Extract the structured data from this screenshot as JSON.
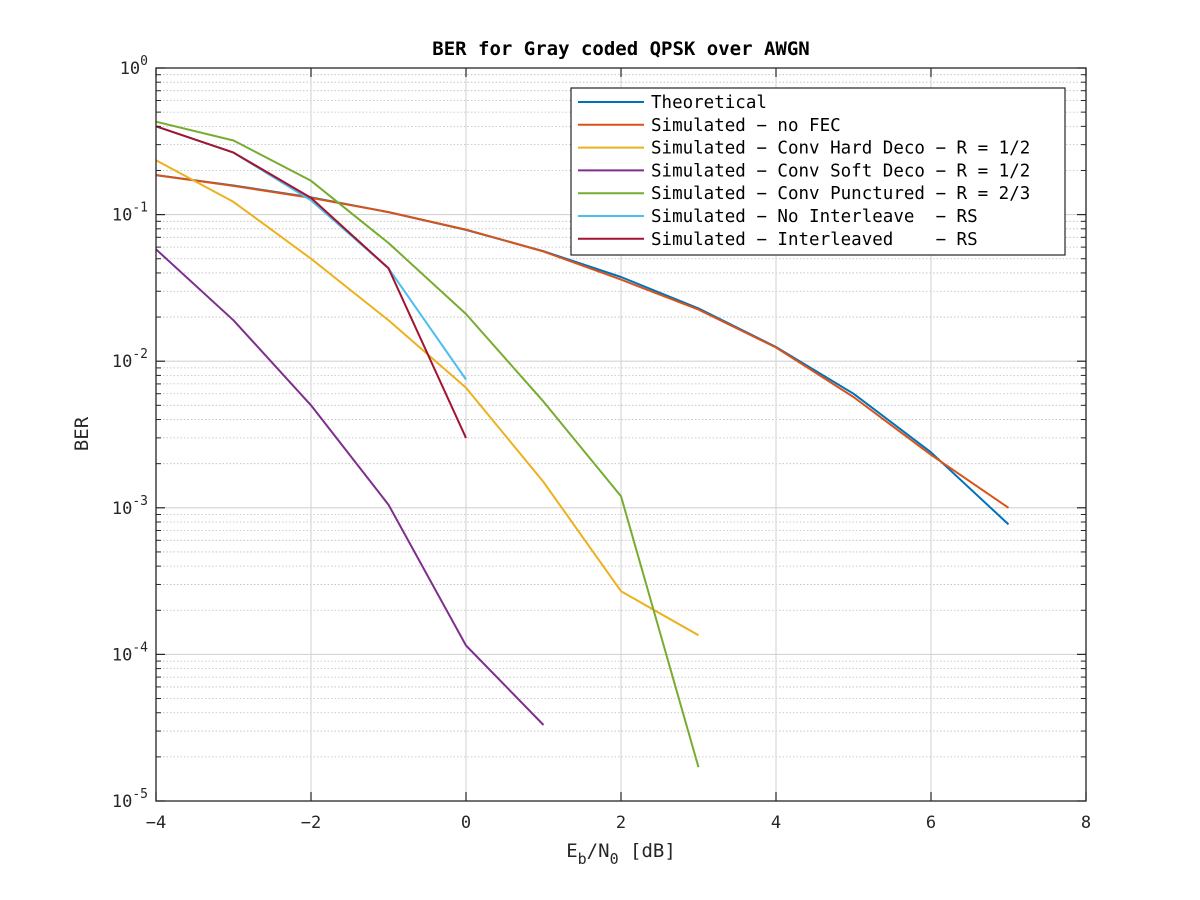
{
  "chart_data": {
    "type": "line",
    "title": "BER for Gray coded QPSK over AWGN",
    "xlabel": {
      "base": "E",
      "sub1": "b",
      "mid": "/N",
      "sub2": "0",
      "tail": " [dB]"
    },
    "ylabel": "BER",
    "xlim": [
      -4,
      8
    ],
    "ylim": [
      1e-05,
      1
    ],
    "yscale": "log",
    "grid": true,
    "minor_grid": true,
    "legend_position": "top-right",
    "x_ticks": [
      "−4",
      "−2",
      "0",
      "2",
      "4",
      "6",
      "8"
    ],
    "y_ticks": [
      {
        "base": "10",
        "exp": "0"
      },
      {
        "base": "10",
        "exp": "-1"
      },
      {
        "base": "10",
        "exp": "-2"
      },
      {
        "base": "10",
        "exp": "-3"
      },
      {
        "base": "10",
        "exp": "-4"
      },
      {
        "base": "10",
        "exp": "-5"
      }
    ],
    "series": [
      {
        "name": "Theoretical",
        "color": "#0072BD",
        "x": [
          -4,
          -3,
          -2,
          -1,
          0,
          1,
          2,
          3,
          4,
          5,
          6,
          7
        ],
        "y": [
          0.186,
          0.158,
          0.131,
          0.104,
          0.0786,
          0.0563,
          0.0375,
          0.0229,
          0.0125,
          0.006,
          0.00239,
          0.00077
        ]
      },
      {
        "name": "Simulated − no FEC",
        "color": "#D95319",
        "x": [
          -4,
          -3,
          -2,
          -1,
          0,
          1,
          2,
          3,
          4,
          5,
          6,
          7
        ],
        "y": [
          0.186,
          0.157,
          0.13,
          0.104,
          0.079,
          0.056,
          0.036,
          0.0225,
          0.0124,
          0.0057,
          0.0023,
          0.001
        ]
      },
      {
        "name": "Simulated − Conv Hard Deco − R = 1/2",
        "color": "#EDB120",
        "x": [
          -4,
          -3,
          -2,
          -1,
          0,
          1,
          2,
          3
        ],
        "y": [
          0.235,
          0.122,
          0.05,
          0.019,
          0.0066,
          0.0015,
          0.00027,
          0.000135
        ]
      },
      {
        "name": "Simulated − Conv Soft Deco − R = 1/2",
        "color": "#7E2F8E",
        "x": [
          -4,
          -3,
          -2,
          -1,
          0,
          1
        ],
        "y": [
          0.058,
          0.019,
          0.005,
          0.00105,
          0.000115,
          3.3e-05
        ]
      },
      {
        "name": "Simulated − Conv Punctured − R = 2/3",
        "color": "#77AC30",
        "x": [
          -4,
          -3,
          -2,
          -1,
          0,
          1,
          2,
          3
        ],
        "y": [
          0.43,
          0.32,
          0.17,
          0.064,
          0.021,
          0.0053,
          0.0012,
          1.7e-05
        ]
      },
      {
        "name": "Simulated − No Interleave  − RS",
        "color": "#4DBEEE",
        "x": [
          -4,
          -3,
          -2,
          -1,
          0
        ],
        "y": [
          0.4,
          0.265,
          0.125,
          0.043,
          0.0075
        ]
      },
      {
        "name": "Simulated − Interleaved    − RS",
        "color": "#A2142F",
        "x": [
          -4,
          -3,
          -2,
          -1,
          0
        ],
        "y": [
          0.4,
          0.265,
          0.13,
          0.043,
          0.003
        ]
      }
    ]
  }
}
